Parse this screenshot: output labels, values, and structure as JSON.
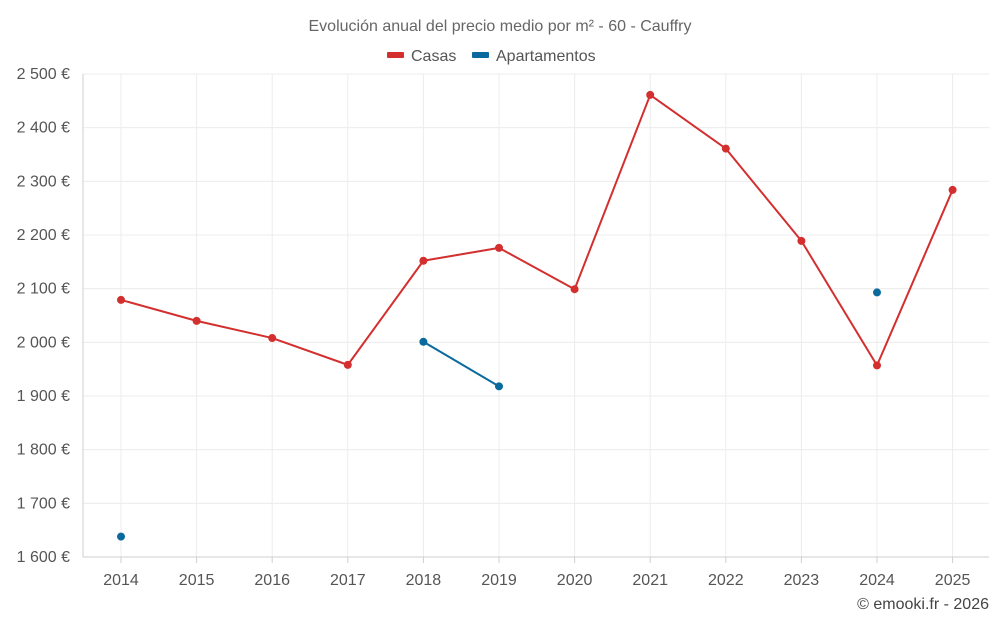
{
  "chart_data": {
    "type": "line",
    "title": "Evolución anual del precio medio por m² - 60 - Cauffry",
    "categories": [
      "2014",
      "2015",
      "2016",
      "2017",
      "2018",
      "2019",
      "2020",
      "2021",
      "2022",
      "2023",
      "2024",
      "2025"
    ],
    "series": [
      {
        "name": "Casas",
        "color": "#d32f2f",
        "values": [
          2079,
          2040,
          2008,
          1958,
          2152,
          2176,
          2099,
          2461,
          2361,
          2189,
          1957,
          2284
        ]
      },
      {
        "name": "Apartamentos",
        "color": "#0a6a9e",
        "values": [
          1638,
          null,
          null,
          null,
          2001,
          1918,
          null,
          null,
          null,
          null,
          2093,
          null
        ]
      }
    ],
    "ylim": [
      1600,
      2500
    ],
    "yticks": [
      1600,
      1700,
      1800,
      1900,
      2000,
      2100,
      2200,
      2300,
      2400,
      2500
    ],
    "ytick_labels": [
      "1 600 €",
      "1 700 €",
      "1 800 €",
      "1 900 €",
      "2 000 €",
      "2 100 €",
      "2 200 €",
      "2 300 €",
      "2 400 €",
      "2 500 €"
    ],
    "xlabel": "",
    "ylabel": "",
    "grid": true,
    "legend_position": "top-center"
  },
  "credit": "© emooki.fr - 2026"
}
